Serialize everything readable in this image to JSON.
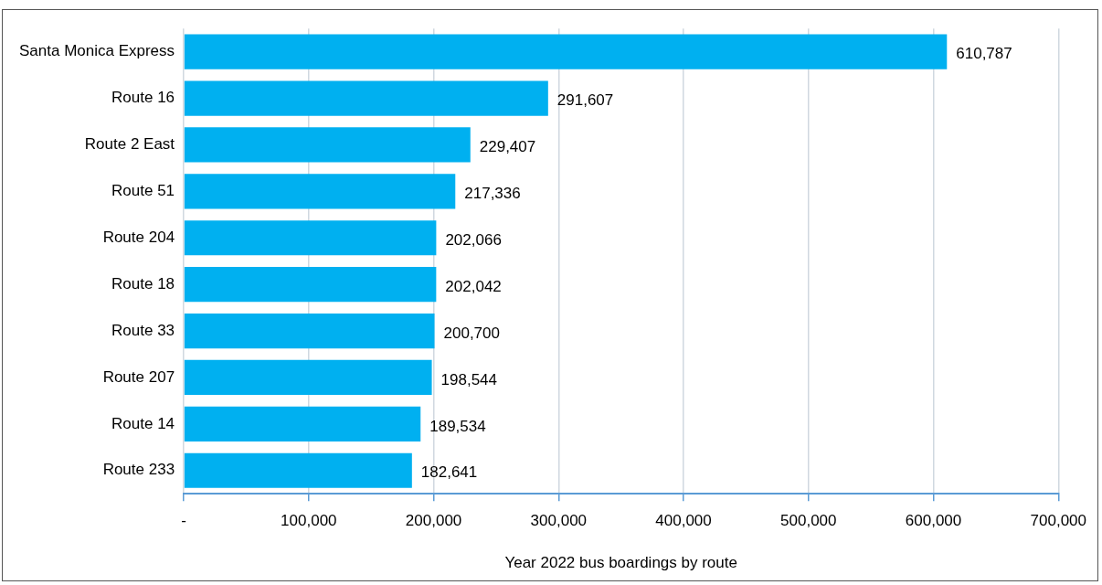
{
  "chart_data": {
    "type": "bar",
    "orientation": "horizontal",
    "xlabel": "Year 2022 bus boardings by route",
    "categories": [
      "Santa Monica Express",
      "Route 16",
      "Route 2 East",
      "Route 51",
      "Route 204",
      "Route 18",
      "Route 33",
      "Route 207",
      "Route 14",
      "Route 233"
    ],
    "values": [
      610787,
      291607,
      229407,
      217336,
      202066,
      202042,
      200700,
      198544,
      189534,
      182641
    ],
    "value_labels": [
      "610,787",
      "291,607",
      "229,407",
      "217,336",
      "202,066",
      "202,042",
      "200,700",
      "198,544",
      "189,534",
      "182,641"
    ],
    "color": "#00b0f0",
    "xlim": [
      0,
      700000
    ],
    "xticks": [
      {
        "value": 0,
        "label": "-"
      },
      {
        "value": 100000,
        "label": "100,000"
      },
      {
        "value": 200000,
        "label": "200,000"
      },
      {
        "value": 300000,
        "label": "300,000"
      },
      {
        "value": 400000,
        "label": "400,000"
      },
      {
        "value": 500000,
        "label": "500,000"
      },
      {
        "value": 600000,
        "label": "600,000"
      },
      {
        "value": 700000,
        "label": "700,000"
      }
    ],
    "grid": "x",
    "legend": false
  }
}
